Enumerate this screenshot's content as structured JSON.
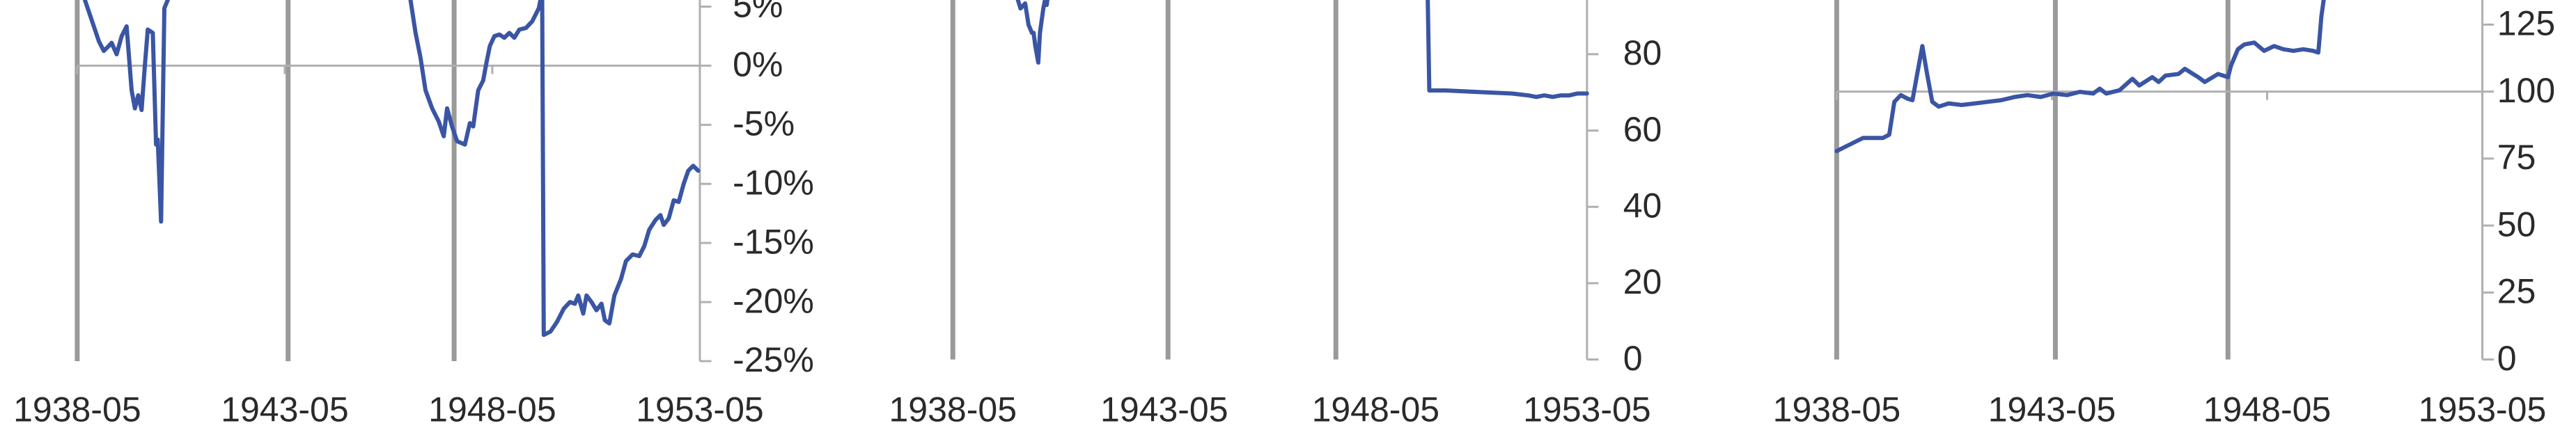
{
  "chart_data": [
    {
      "type": "line",
      "color": "#3a55a4",
      "xlim": [
        1938.33,
        1953.33
      ],
      "xticks": [
        {
          "value": 1938.33,
          "label": "1938-05"
        },
        {
          "value": 1943.33,
          "label": "1943-05"
        },
        {
          "value": 1948.33,
          "label": "1948-05"
        },
        {
          "value": 1953.33,
          "label": "1953-05"
        }
      ],
      "ylim": [
        -25,
        5.56
      ],
      "yticks": [
        {
          "value": 5,
          "label": "5%"
        },
        {
          "value": 0,
          "label": "0%"
        },
        {
          "value": -5,
          "label": "-5%"
        },
        {
          "value": -10,
          "label": "-10%"
        },
        {
          "value": -15,
          "label": "-15%"
        },
        {
          "value": -20,
          "label": "-20%"
        },
        {
          "value": -25,
          "label": "-25%"
        }
      ],
      "vlines": [
        1938.33,
        1943.41,
        1947.41
      ],
      "hline": 0,
      "x": [
        1938.45,
        1938.65,
        1938.85,
        1938.97,
        1939.09,
        1939.16,
        1939.28,
        1939.4,
        1939.52,
        1939.64,
        1939.72,
        1939.8,
        1939.88,
        1939.96,
        1940.03,
        1940.15,
        1940.23,
        1940.27,
        1940.35,
        1940.43,
        1940.51,
        1940.59,
        null,
        1946.33,
        1946.48,
        1946.6,
        1946.72,
        1946.88,
        1947.04,
        1947.16,
        1947.24,
        1947.36,
        1947.48,
        1947.67,
        1947.79,
        1947.87,
        1947.99,
        1948.11,
        1948.19,
        1948.27,
        1948.38,
        1948.5,
        1948.62,
        1948.74,
        1948.86,
        1948.98,
        1949.14,
        1949.29,
        1949.45,
        1949.53,
        1949.57,
        1949.73,
        1949.89,
        1950.05,
        1950.2,
        1950.32,
        1950.4,
        1950.52,
        1950.6,
        1950.72,
        1950.84,
        1950.96,
        1951.04,
        1951.15,
        1951.27,
        1951.43,
        1951.55,
        1951.71,
        1951.87,
        1951.99,
        1952.11,
        1952.26,
        1952.38,
        1952.46,
        1952.58,
        1952.7,
        1952.82,
        1952.94,
        1953.05,
        1953.17,
        1953.29
      ],
      "values": [
        6.25,
        4.17,
        2.08,
        1.25,
        1.67,
        1.94,
        0.97,
        2.5,
        3.33,
        -2.08,
        -3.61,
        -2.5,
        -3.75,
        0,
        3.06,
        2.78,
        -6.67,
        -6.25,
        -13.19,
        4.86,
        5.56,
        6.25,
        null,
        6.25,
        2.78,
        0.69,
        -2.08,
        -3.61,
        -4.72,
        -5.97,
        -3.61,
        -5.14,
        -6.39,
        -6.67,
        -4.86,
        -5.14,
        -2.08,
        -1.25,
        0.28,
        1.67,
        2.5,
        2.64,
        2.36,
        2.78,
        2.36,
        3.06,
        3.19,
        3.75,
        4.86,
        6.25,
        -22.78,
        -22.5,
        -21.67,
        -20.56,
        -20.0,
        -20.14,
        -19.44,
        -20.97,
        -19.44,
        -20.0,
        -20.69,
        -20.14,
        -21.53,
        -21.81,
        -19.44,
        -18.06,
        -16.53,
        -15.97,
        -16.11,
        -15.28,
        -13.89,
        -13.06,
        -12.64,
        -13.47,
        -12.92,
        -11.39,
        -11.53,
        -10.0,
        -8.89,
        -8.47,
        -8.89
      ]
    },
    {
      "type": "line",
      "color": "#3a55a4",
      "xlim": [
        1938.33,
        1953.33
      ],
      "xticks": [
        {
          "value": 1938.33,
          "label": "1938-05"
        },
        {
          "value": 1943.33,
          "label": "1943-05"
        },
        {
          "value": 1948.33,
          "label": "1948-05"
        },
        {
          "value": 1953.33,
          "label": "1953-05"
        }
      ],
      "ylim": [
        0,
        94.2
      ],
      "yticks": [
        0,
        20,
        40,
        60,
        80
      ],
      "vlines": [
        1938.33,
        1943.42,
        1947.39
      ],
      "x": [
        1939.81,
        1939.93,
        1940.04,
        1940.12,
        1940.2,
        1940.24,
        1940.28,
        1940.35,
        1940.39,
        1940.47,
        1940.51,
        1940.55,
        1940.59,
        null,
        1949.56,
        1949.6,
        1949.99,
        1950.77,
        1951.55,
        1951.94,
        1952.13,
        1952.32,
        1952.52,
        1952.71,
        1952.91,
        1953.1,
        1953.33
      ],
      "values": [
        96.3,
        92.0,
        93.3,
        87.7,
        85.6,
        85.6,
        82.2,
        77.8,
        85.6,
        92.0,
        94.2,
        92.9,
        96.3,
        null,
        96.3,
        70.5,
        70.5,
        70.1,
        69.7,
        69.2,
        68.8,
        69.2,
        68.8,
        69.2,
        69.2,
        69.7,
        69.7
      ]
    },
    {
      "type": "line",
      "color": "#3a55a4",
      "xlim": [
        1938.33,
        1953.33
      ],
      "xticks": [
        {
          "value": 1938.33,
          "label": "1938-05"
        },
        {
          "value": 1943.33,
          "label": "1943-05"
        },
        {
          "value": 1948.33,
          "label": "1948-05"
        },
        {
          "value": 1953.33,
          "label": "1953-05"
        }
      ],
      "ylim": [
        0,
        134.2
      ],
      "yticks": [
        0,
        25,
        50,
        75,
        100,
        125
      ],
      "vlines": [
        1938.33,
        1943.41,
        1947.42
      ],
      "hline": 100,
      "x": [
        1938.33,
        1938.64,
        1938.94,
        1939.4,
        1939.55,
        1939.67,
        1939.82,
        1939.97,
        1940.09,
        1940.2,
        1940.32,
        1940.43,
        1940.55,
        1940.7,
        1940.93,
        1941.23,
        1941.54,
        1941.84,
        1942.15,
        1942.46,
        1942.76,
        1943.07,
        1943.37,
        1943.68,
        1943.98,
        1944.29,
        1944.44,
        1944.59,
        1944.9,
        1945.2,
        1945.36,
        1945.66,
        1945.81,
        1945.97,
        1946.27,
        1946.42,
        1946.73,
        1946.88,
        1947.19,
        1947.42,
        1947.49,
        1947.65,
        1947.8,
        1948.03,
        1948.26,
        1948.49,
        1948.71,
        1948.94,
        1949.17,
        1949.4,
        1949.52,
        1949.59,
        1949.67
      ],
      "values": [
        77.8,
        80.3,
        82.7,
        82.7,
        83.9,
        96.2,
        98.7,
        97.4,
        96.8,
        106.6,
        117.0,
        106.6,
        96.2,
        94.4,
        95.6,
        95.0,
        95.6,
        96.2,
        96.8,
        98.0,
        98.7,
        98.0,
        99.3,
        98.7,
        99.9,
        99.3,
        101.1,
        99.3,
        100.5,
        104.8,
        102.3,
        105.4,
        103.6,
        106.0,
        106.6,
        108.5,
        105.4,
        103.6,
        106.6,
        105.4,
        109.7,
        115.8,
        117.6,
        118.3,
        115.2,
        117.0,
        115.8,
        115.2,
        115.8,
        115.2,
        114.6,
        128.1,
        137.3
      ]
    }
  ]
}
